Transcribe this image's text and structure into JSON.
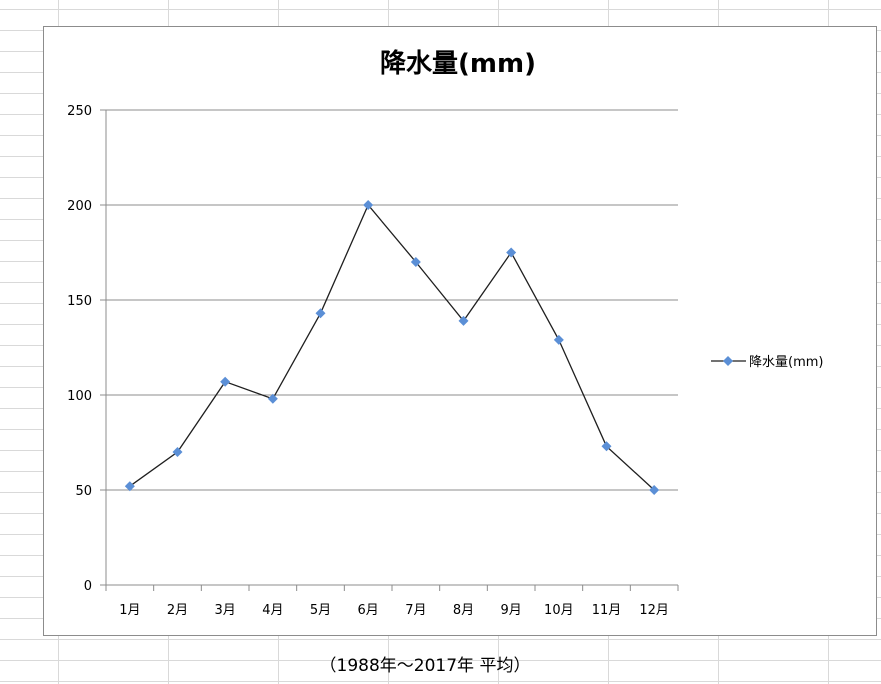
{
  "chart_data": {
    "type": "line",
    "title": "降水量(mm)",
    "xlabel": "",
    "ylabel": "",
    "categories": [
      "1月",
      "2月",
      "3月",
      "4月",
      "5月",
      "6月",
      "7月",
      "8月",
      "9月",
      "10月",
      "11月",
      "12月"
    ],
    "series": [
      {
        "name": "降水量(mm)",
        "values": [
          52,
          70,
          107,
          98,
          143,
          200,
          170,
          139,
          175,
          129,
          73,
          50
        ]
      }
    ],
    "ylim": [
      0,
      250
    ],
    "yticks": [
      0,
      50,
      100,
      150,
      200,
      250
    ],
    "grid": true,
    "legend_position": "right",
    "colors": {
      "line": "#1f1f1f",
      "marker": "#5b8fd6",
      "grid": "#8c8c8c",
      "axis": "#8c8c8c"
    }
  },
  "footer": {
    "caption": "（1988年～2017年 平均）"
  }
}
